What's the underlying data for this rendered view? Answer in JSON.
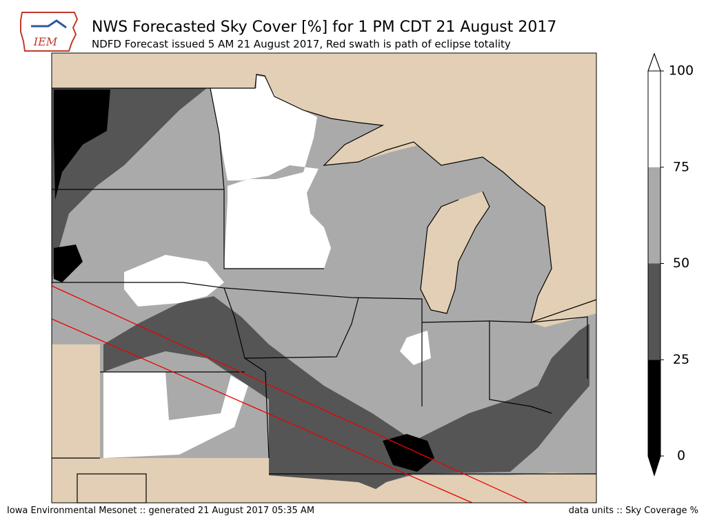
{
  "header": {
    "logo": "IEM",
    "title": "NWS Forecasted Sky Cover [%] for 1 PM CDT 21 August 2017",
    "subtitle": "NDFD Forecast issued 5 AM 21 August 2017, Red swath is path of eclipse totality"
  },
  "colorbar": {
    "levels": [
      0,
      25,
      50,
      75,
      100
    ],
    "colors": [
      "#000000",
      "#555555",
      "#aaaaaa",
      "#ffffff"
    ]
  },
  "footer": {
    "left": "Iowa Environmental Mesonet :: generated 21 August 2017 05:35 AM",
    "right": "data units :: Sky Coverage %"
  }
}
